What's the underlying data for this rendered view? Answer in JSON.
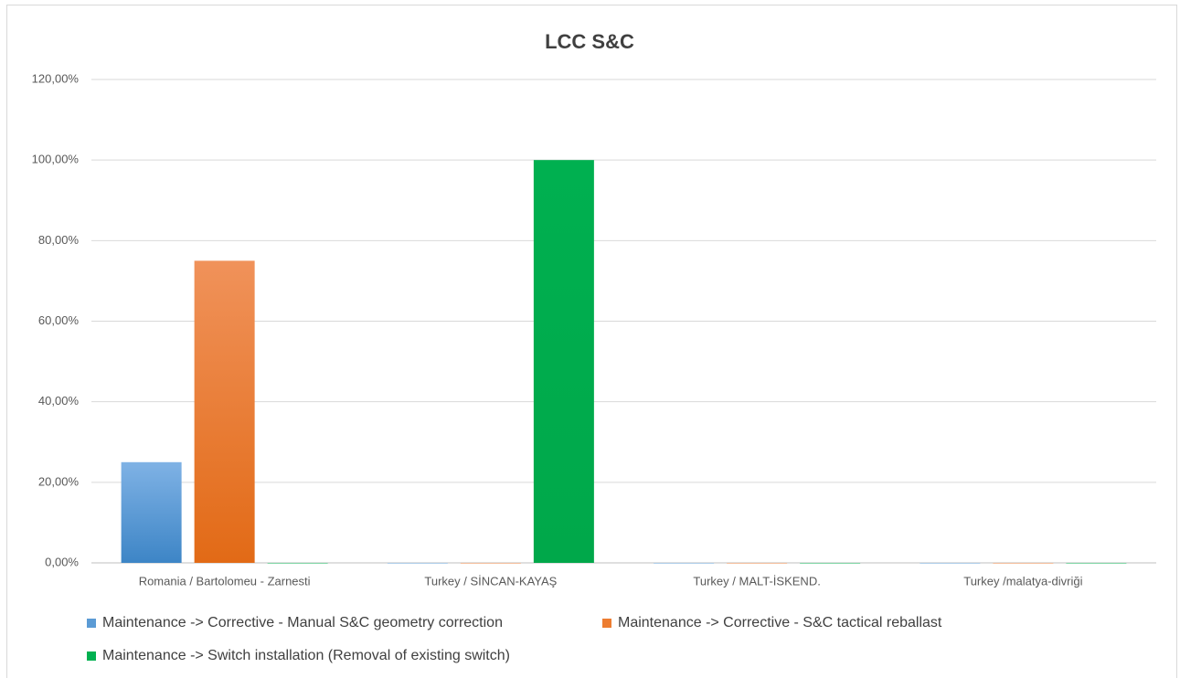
{
  "chart_data": {
    "type": "bar",
    "title": "LCC S&C",
    "categories": [
      "Romania / Bartolomeu - Zarnesti",
      "Turkey / SİNCAN-KAYAŞ",
      "Turkey / MALT-İSKEND.",
      "Turkey /malatya-divriği"
    ],
    "series": [
      {
        "name": "Maintenance -> Corrective - Manual S&C geometry correction",
        "color": "#5b9bd5",
        "values": [
          25,
          0,
          0,
          0
        ]
      },
      {
        "name": "Maintenance -> Corrective -  S&C tactical reballast",
        "color": "#ed7d31",
        "values": [
          75,
          0,
          0,
          0
        ]
      },
      {
        "name": "Maintenance -> Switch installation (Removal of existing switch)",
        "color": "#00b050",
        "values": [
          0,
          100,
          0,
          0
        ]
      }
    ],
    "ylim": [
      0,
      120
    ],
    "yticks": [
      {
        "value": 0,
        "label": "0,00%"
      },
      {
        "value": 20,
        "label": "20,00%"
      },
      {
        "value": 40,
        "label": "40,00%"
      },
      {
        "value": 60,
        "label": "60,00%"
      },
      {
        "value": 80,
        "label": "80,00%"
      },
      {
        "value": 100,
        "label": "100,00%"
      },
      {
        "value": 120,
        "label": "120,00%"
      }
    ],
    "grid": true,
    "legend": "bottom"
  }
}
